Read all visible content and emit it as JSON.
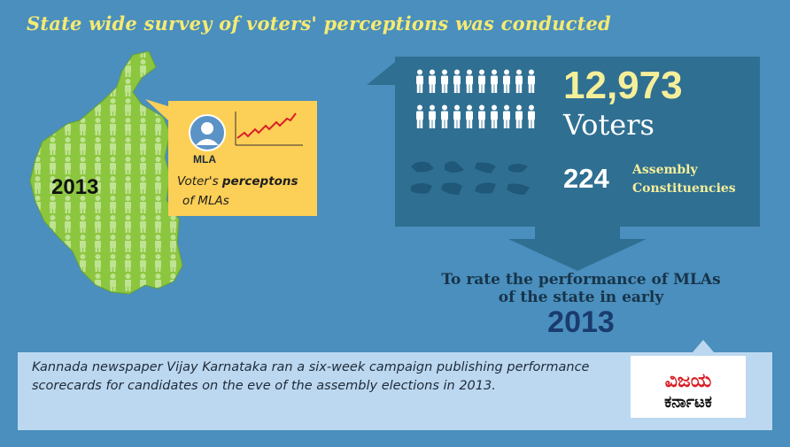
{
  "title": "State wide survey of voters' perceptions was conducted",
  "map": {
    "year": "2013"
  },
  "callout": {
    "avatar_label": "MLA",
    "caption_plain": "Voter's ",
    "caption_bold": "perceptons",
    "caption_line2": "of MLAs"
  },
  "stats": {
    "voters_count": "12,973",
    "voters_label": "Voters",
    "constituencies_count": "224",
    "constituencies_label_1": "Assembly",
    "constituencies_label_2": "Constituencies"
  },
  "goal": {
    "line1": "To rate the performance of MLAs",
    "line2": "of the state in early",
    "year": "2013"
  },
  "footer": {
    "text": "Kannada newspaper Vijay Karnataka ran a six-week campaign publishing performance scorecards for candidates on the eve of the assembly elections in 2013."
  },
  "logo": {
    "line1": "ವಿಜಯ",
    "line2": "ಕರ್ನಾಟಕ"
  },
  "colors": {
    "background": "#4a8fbd",
    "title": "#f5ea74",
    "map_fill": "#8cc63f",
    "callout": "#fccf56",
    "panel": "#2f6f92",
    "highlight": "#f5ef9a",
    "footer": "#bcd8f0",
    "logo_red": "#d91e25"
  },
  "icons": [
    "karnataka-map",
    "person-figure-icon",
    "mla-avatar-icon",
    "rising-line-chart-icon",
    "constituency-shape-icon",
    "down-arrow"
  ]
}
